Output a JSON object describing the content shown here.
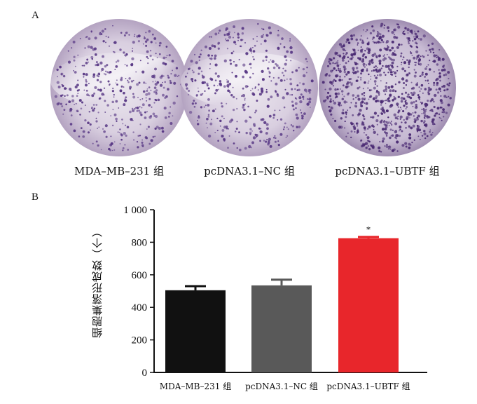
{
  "panel_a": {
    "label": "A",
    "dishes": [
      {
        "label": "MDA–MB–231 组",
        "density": "medium"
      },
      {
        "label": "pcDNA3.1–NC 组",
        "density": "medium"
      },
      {
        "label": "pcDNA3.1–UBTF 组",
        "density": "high"
      }
    ]
  },
  "panel_b": {
    "label": "B"
  },
  "chart_data": {
    "type": "bar",
    "categories": [
      "MDA–MB–231 组",
      "pcDNA3.1–NC 组",
      "pcDNA3.1–UBTF 组"
    ],
    "values": [
      505,
      535,
      825
    ],
    "errors": [
      25,
      35,
      8
    ],
    "bar_colors": [
      "#111111",
      "#595959",
      "#e8262b"
    ],
    "annotations": [
      "",
      "",
      "*"
    ],
    "ylabel": "细胞集落形成数（个）",
    "yticks": [
      "0",
      "200",
      "400",
      "600",
      "800",
      "1 000"
    ],
    "ylim": [
      0,
      1000
    ],
    "grid": false
  }
}
